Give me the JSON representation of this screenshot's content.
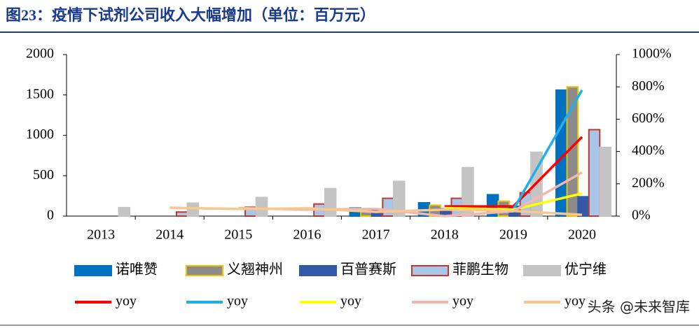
{
  "chart_data": {
    "type": "bar-line",
    "title": "图23：疫情下试剂公司收入大幅增加（单位：百万元）",
    "watermark": "头条 @未来智库",
    "categories": [
      "2013",
      "2014",
      "2015",
      "2016",
      "2017",
      "2018",
      "2019",
      "2020"
    ],
    "ylim": [
      0,
      2000
    ],
    "yticks": [
      0,
      500,
      1000,
      1500,
      2000
    ],
    "y2lim": [
      0,
      1000
    ],
    "y2ticks": [
      {
        "value": 0,
        "label": "0%"
      },
      {
        "value": 200,
        "label": "200%"
      },
      {
        "value": 400,
        "label": "400%"
      },
      {
        "value": 600,
        "label": "600%"
      },
      {
        "value": 800,
        "label": "800%"
      },
      {
        "value": 1000,
        "label": "1000%"
      }
    ],
    "series": [
      {
        "name": "诺唯赞",
        "kind": "bar",
        "color": "#0070c0",
        "border": "#0070c0",
        "values": [
          null,
          null,
          null,
          null,
          100,
          165,
          265,
          1560
        ]
      },
      {
        "name": "义翘神州",
        "kind": "bar",
        "color": "#8c8c8c",
        "border": "#f2c100",
        "values": [
          null,
          null,
          null,
          null,
          90,
          135,
          185,
          1600
        ]
      },
      {
        "name": "百普赛斯",
        "kind": "bar",
        "color": "#3258a8",
        "border": "#3258a8",
        "values": [
          null,
          null,
          null,
          null,
          70,
          90,
          120,
          240
        ]
      },
      {
        "name": "菲鹏生物",
        "kind": "bar",
        "color": "#a9c6ea",
        "border": "#c0392b",
        "values": [
          null,
          50,
          110,
          150,
          220,
          220,
          290,
          1070
        ]
      },
      {
        "name": "优宁维",
        "kind": "bar",
        "color": "#c4c4c4",
        "border": "#c4c4c4",
        "values": [
          105,
          160,
          230,
          340,
          430,
          600,
          790,
          850
        ]
      },
      {
        "name": "yoy",
        "kind": "line",
        "axis": "y2",
        "color": "#ff0000",
        "values": [
          null,
          null,
          null,
          null,
          null,
          60,
          60,
          490
        ]
      },
      {
        "name": "yoy",
        "kind": "line",
        "axis": "y2",
        "color": "#1fb0ea",
        "values": [
          null,
          null,
          null,
          null,
          null,
          null,
          40,
          780
        ]
      },
      {
        "name": "yoy",
        "kind": "line",
        "axis": "y2",
        "color": "#ffff00",
        "values": [
          null,
          null,
          null,
          null,
          null,
          50,
          40,
          140
        ]
      },
      {
        "name": "yoy",
        "kind": "line",
        "axis": "y2",
        "color": "#f2b8b0",
        "values": [
          null,
          null,
          50,
          40,
          45,
          0,
          30,
          270
        ]
      },
      {
        "name": "yoy",
        "kind": "line",
        "axis": "y2",
        "color": "#f9c78f",
        "values": [
          null,
          52,
          44,
          48,
          26,
          40,
          32,
          8
        ]
      }
    ]
  }
}
